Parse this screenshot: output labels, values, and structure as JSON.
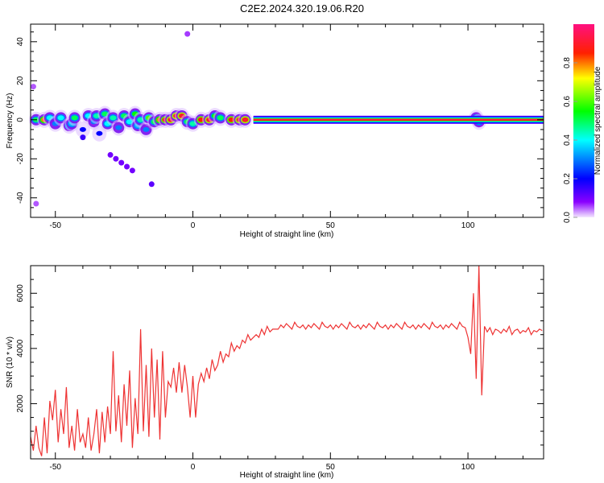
{
  "chart_data": [
    {
      "type": "heatmap",
      "title": "C2E2.2024.320.19.06.R20",
      "xlabel": "Height of straight line (km)",
      "ylabel": "Frequency (Hz)",
      "xlim": [
        -59,
        127.5
      ],
      "ylim": [
        -50,
        49
      ],
      "xticks": [
        -50,
        0,
        50,
        100
      ],
      "yticks": [
        -40,
        -20,
        0,
        20,
        40
      ],
      "colorbar": {
        "label": "Normalized spectral amplitude",
        "range": [
          0,
          1
        ],
        "ticks": [
          "0.0",
          "0.2",
          "0.4",
          "0.6",
          "0.8"
        ]
      },
      "continuous_line": {
        "x_start": 22,
        "x_end": 127.5,
        "frequency": 0,
        "amplitude": 0.95
      },
      "blobs_x_freq_amp": [
        [
          -57,
          0,
          0.5
        ],
        [
          -54,
          0,
          0.8
        ],
        [
          -52,
          1,
          0.4
        ],
        [
          -50,
          -2,
          0.3
        ],
        [
          -48,
          1,
          0.4
        ],
        [
          -45,
          -3,
          0.35
        ],
        [
          -44,
          -2,
          0.35
        ],
        [
          -43,
          1,
          0.5
        ],
        [
          -40,
          -5,
          0.2
        ],
        [
          -40,
          -9,
          0.15
        ],
        [
          -38,
          2,
          0.4
        ],
        [
          -36,
          -1,
          0.3
        ],
        [
          -35,
          2,
          0.45
        ],
        [
          -34,
          -7,
          0.2
        ],
        [
          -32,
          3,
          0.5
        ],
        [
          -31,
          -2,
          0.4
        ],
        [
          -29,
          1,
          0.45
        ],
        [
          -27,
          -4,
          0.3
        ],
        [
          -25,
          2,
          0.5
        ],
        [
          -23,
          -1,
          0.4
        ],
        [
          -21,
          3,
          0.55
        ],
        [
          -20,
          -3,
          0.35
        ],
        [
          -19,
          0,
          0.45
        ],
        [
          -17,
          -5,
          0.3
        ],
        [
          -16,
          1,
          0.6
        ],
        [
          -14,
          -1,
          0.5
        ],
        [
          -12,
          0,
          0.8
        ],
        [
          -10,
          0,
          0.85
        ],
        [
          -8,
          0,
          0.9
        ],
        [
          -6,
          2,
          0.9
        ],
        [
          -4,
          2,
          0.9
        ],
        [
          -2,
          -1,
          0.5
        ],
        [
          0,
          -2,
          0.45
        ],
        [
          3,
          0,
          0.85
        ],
        [
          6,
          0,
          0.9
        ],
        [
          8,
          2,
          0.55
        ],
        [
          10,
          1,
          0.5
        ],
        [
          14,
          0,
          0.85
        ],
        [
          17,
          0,
          0.9
        ],
        [
          19,
          0,
          0.9
        ],
        [
          103,
          1,
          0.5
        ],
        [
          104,
          -1,
          0.45
        ],
        [
          -30,
          -18,
          0.1
        ],
        [
          -28,
          -20,
          0.1
        ],
        [
          -26,
          -22,
          0.1
        ],
        [
          -24,
          -24,
          0.1
        ],
        [
          -22,
          -26,
          0.1
        ],
        [
          -15,
          -33,
          0.12
        ],
        [
          -57,
          -43,
          0.05
        ],
        [
          -2,
          44,
          0.06
        ],
        [
          -58,
          17,
          0.05
        ]
      ]
    },
    {
      "type": "line",
      "xlabel": "Height of straight line (km)",
      "ylabel": "SNR (10 * v/v)",
      "xlim": [
        -59,
        127.5
      ],
      "ylim": [
        0,
        7000
      ],
      "xticks": [
        -50,
        0,
        50,
        100
      ],
      "yticks": [
        2000,
        4000,
        6000
      ],
      "color": "#ee3333",
      "x_start": -59,
      "x_step": 1,
      "values": [
        800,
        300,
        1200,
        400,
        100,
        1500,
        200,
        2100,
        1400,
        2500,
        600,
        1800,
        900,
        2600,
        400,
        1200,
        300,
        1800,
        600,
        900,
        400,
        1500,
        300,
        900,
        1800,
        200,
        1700,
        600,
        1900,
        900,
        3900,
        1000,
        2300,
        600,
        2700,
        1200,
        3200,
        400,
        2200,
        900,
        4700,
        1000,
        3400,
        800,
        4000,
        1500,
        3600,
        700,
        3900,
        1500,
        2800,
        2600,
        3300,
        2400,
        3500,
        2400,
        3400,
        2600,
        1500,
        3000,
        1500,
        2700,
        3100,
        2800,
        3300,
        2900,
        3600,
        3200,
        3400,
        3900,
        3500,
        3800,
        3700,
        4200,
        3900,
        4100,
        4000,
        4300,
        4200,
        4500,
        4300,
        4400,
        4500,
        4400,
        4700,
        4500,
        4800,
        4600,
        4700,
        4700,
        4700,
        4850,
        4750,
        4900,
        4800,
        4700,
        4950,
        4800,
        4750,
        4850,
        4700,
        4850,
        4750,
        4900,
        4800,
        4700,
        4950,
        4800,
        4750,
        4850,
        4700,
        4850,
        4750,
        4900,
        4800,
        4700,
        4950,
        4800,
        4750,
        4850,
        4700,
        4850,
        4750,
        4900,
        4800,
        4700,
        4950,
        4800,
        4750,
        4850,
        4700,
        4850,
        4750,
        4900,
        4800,
        4700,
        4950,
        4800,
        4750,
        4850,
        4700,
        4850,
        4750,
        4900,
        4800,
        4700,
        4950,
        4800,
        4750,
        4850,
        4700,
        4850,
        4750,
        4900,
        4800,
        4700,
        4950,
        4800,
        4750,
        4400,
        3800,
        6000,
        2900,
        7000,
        2300,
        4800,
        4600,
        4750,
        4500,
        4700,
        4650,
        4550,
        4700,
        4600,
        4800,
        4500,
        4650,
        4700,
        4550,
        4650,
        4600,
        4750,
        4500,
        4650,
        4600,
        4700,
        4650
      ]
    }
  ]
}
